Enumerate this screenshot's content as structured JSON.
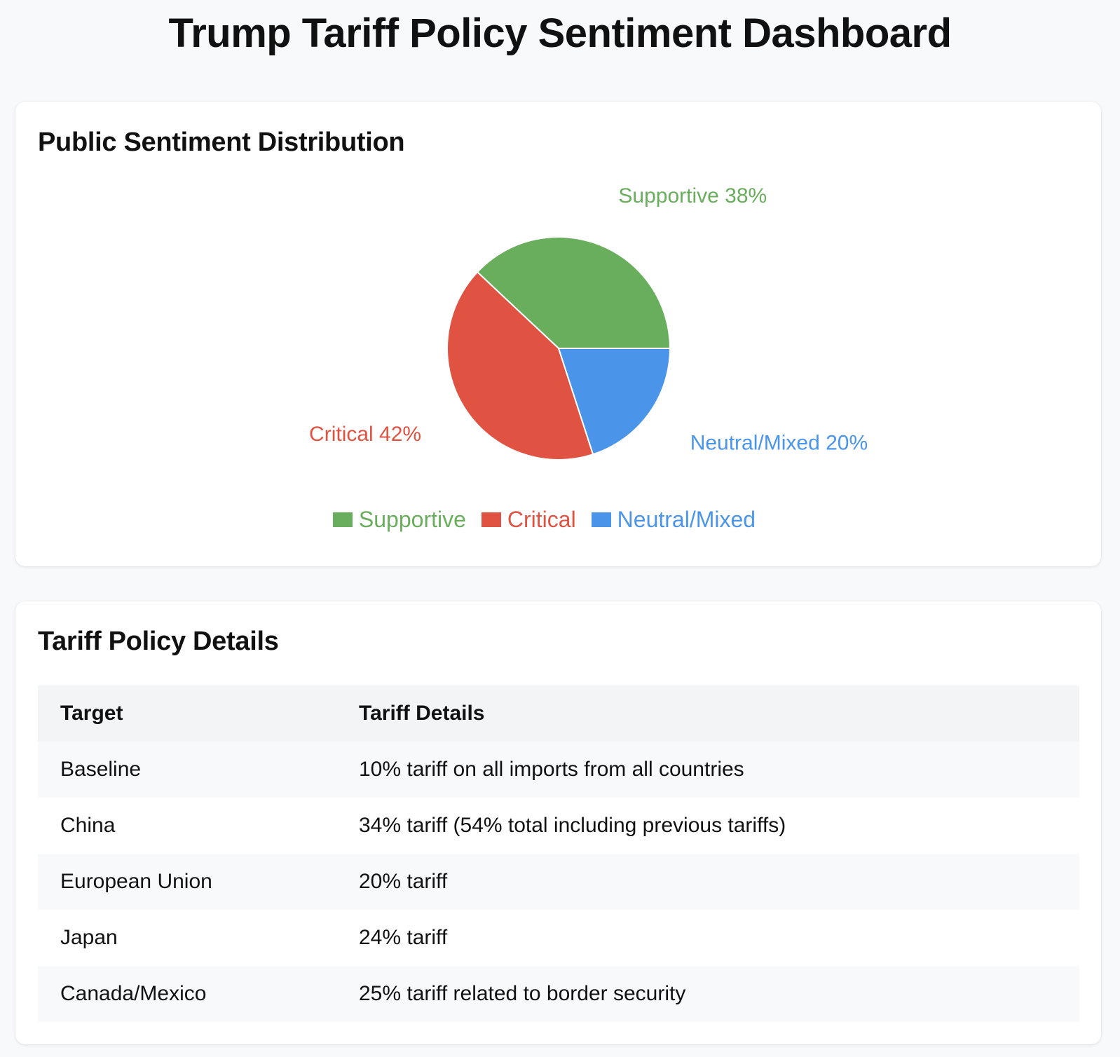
{
  "page": {
    "title": "Trump Tariff Policy Sentiment Dashboard"
  },
  "sentiment_card": {
    "title": "Public Sentiment Distribution"
  },
  "chart_data": {
    "type": "pie",
    "title": "Public Sentiment Distribution",
    "slices": [
      {
        "label": "Supportive",
        "value": 38,
        "display": "Supportive 38%",
        "color": "#69ae5c"
      },
      {
        "label": "Critical",
        "value": 42,
        "display": "Critical 42%",
        "color": "#e05343"
      },
      {
        "label": "Neutral/Mixed",
        "value": 20,
        "display": "Neutral/Mixed 20%",
        "color": "#4a95ea"
      }
    ],
    "legend": {
      "placement": "bottom",
      "items": [
        "Supportive",
        "Critical",
        "Neutral/Mixed"
      ]
    }
  },
  "policy_card": {
    "title": "Tariff Policy Details",
    "columns": [
      "Target",
      "Tariff Details"
    ],
    "rows": [
      {
        "target": "Baseline",
        "details": "10% tariff on all imports from all countries"
      },
      {
        "target": "China",
        "details": "34% tariff (54% total including previous tariffs)"
      },
      {
        "target": "European Union",
        "details": "20% tariff"
      },
      {
        "target": "Japan",
        "details": "24% tariff"
      },
      {
        "target": "Canada/Mexico",
        "details": "25% tariff related to border security"
      }
    ]
  }
}
